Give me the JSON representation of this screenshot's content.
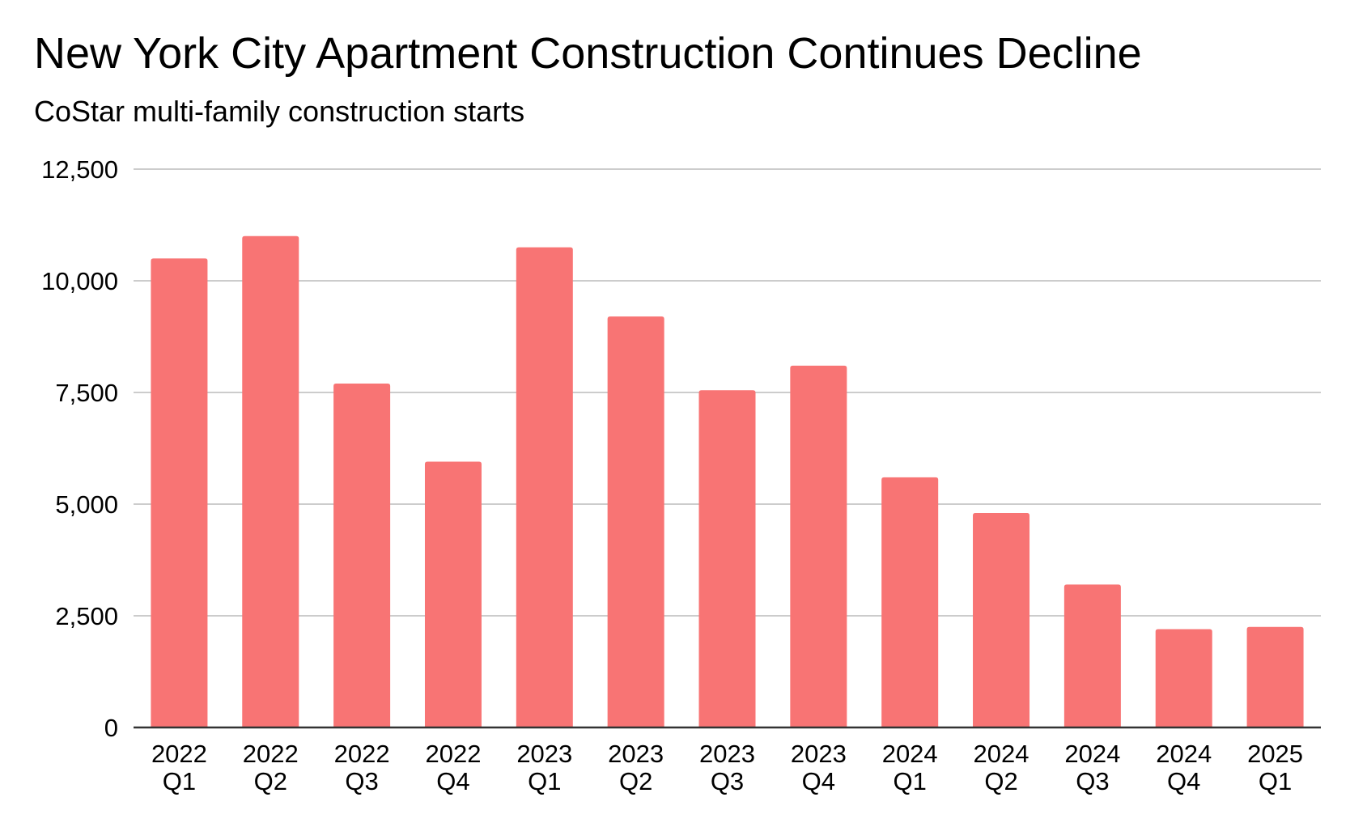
{
  "chart_data": {
    "type": "bar",
    "title": "New York City Apartment Construction Continues Decline",
    "subtitle": "CoStar multi-family construction starts",
    "xlabel": "",
    "ylabel": "",
    "categories": [
      [
        "2022",
        "Q1"
      ],
      [
        "2022",
        "Q2"
      ],
      [
        "2022",
        "Q3"
      ],
      [
        "2022",
        "Q4"
      ],
      [
        "2023",
        "Q1"
      ],
      [
        "2023",
        "Q2"
      ],
      [
        "2023",
        "Q3"
      ],
      [
        "2023",
        "Q4"
      ],
      [
        "2024",
        "Q1"
      ],
      [
        "2024",
        "Q2"
      ],
      [
        "2024",
        "Q3"
      ],
      [
        "2024",
        "Q4"
      ],
      [
        "2025",
        "Q1"
      ]
    ],
    "values": [
      10500,
      11000,
      7700,
      5950,
      10750,
      9200,
      7550,
      8100,
      5600,
      4800,
      3200,
      2200,
      2250
    ],
    "ylim": [
      0,
      12500
    ],
    "yticks": [
      0,
      2500,
      5000,
      7500,
      10000,
      12500
    ],
    "ytick_labels": [
      "0",
      "2,500",
      "5,000",
      "7,500",
      "10,000",
      "12,500"
    ],
    "grid": true,
    "legend": "none",
    "bar_color": "#f87474",
    "grid_color": "#cccccc",
    "axis_color": "#333333"
  }
}
